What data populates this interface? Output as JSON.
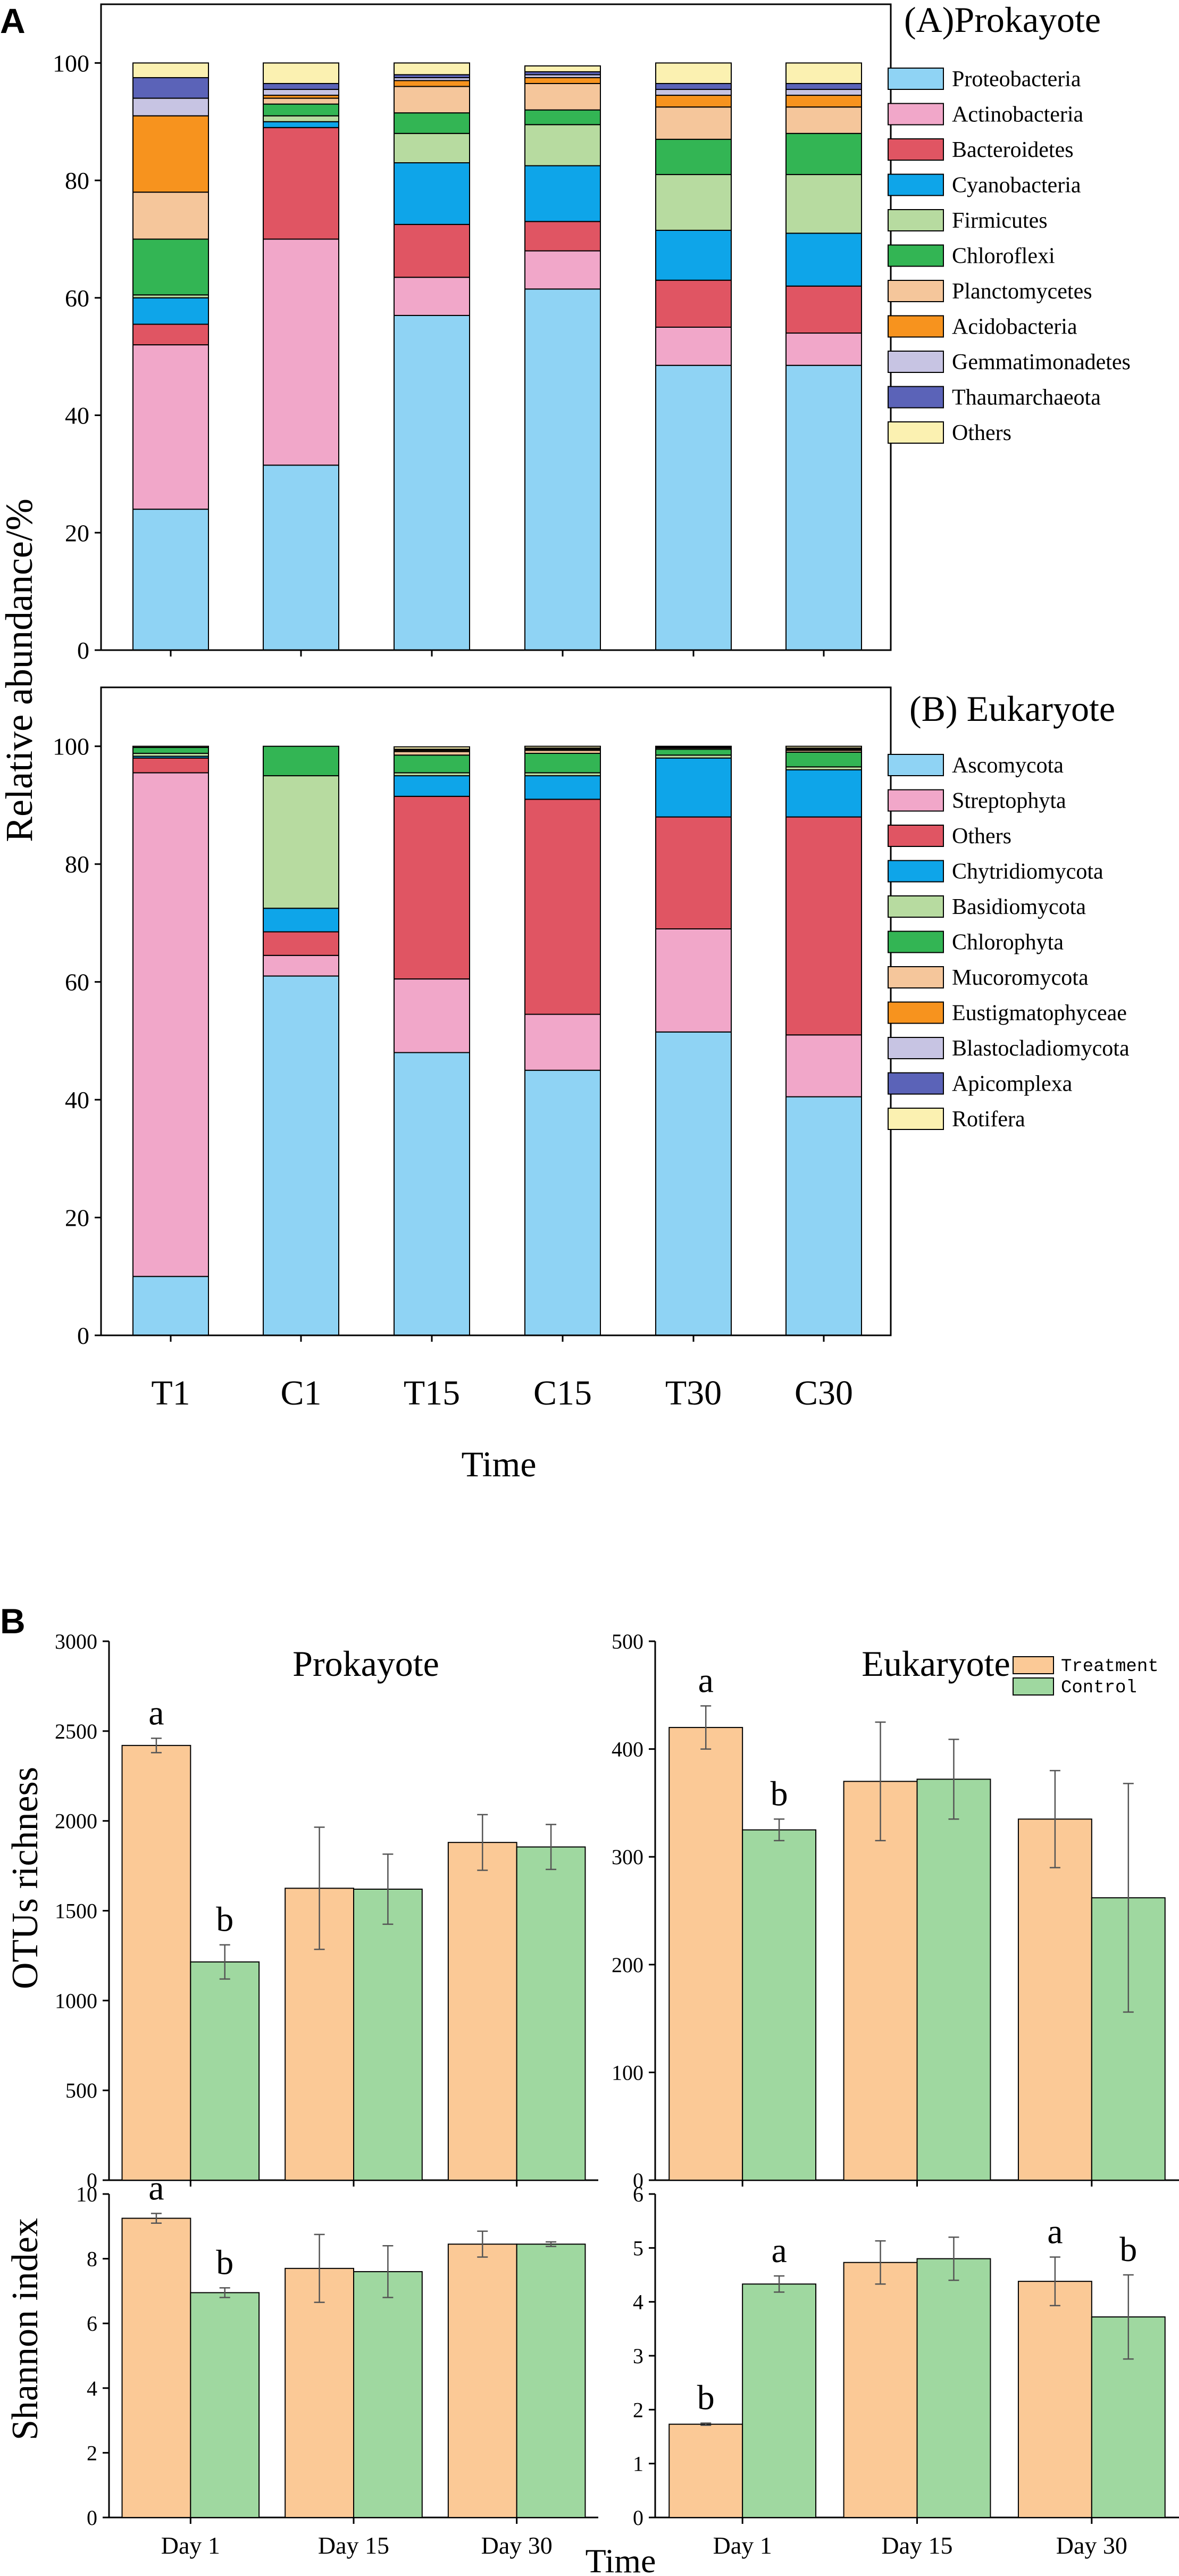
{
  "figure": {
    "panel_a_letter": "A",
    "panel_b_letter": "B",
    "y_label_a": "Relative abundance/%",
    "x_label_a": "Time",
    "x_label_b": "Time",
    "y_label_otus": "OTUs richness",
    "y_label_shannon": "Shannon index"
  },
  "chart_data": [
    {
      "id": "prokaryote",
      "type": "bar",
      "stacked": true,
      "title": "(A)Prokayote",
      "ylim": [
        0,
        110
      ],
      "yticks": [
        0,
        20,
        40,
        60,
        80,
        100
      ],
      "categories": [
        "T1",
        "C1",
        "T15",
        "C15",
        "T30",
        "C30"
      ],
      "series": [
        {
          "name": "Proteobacteria",
          "color": "#8fd3f4",
          "values": [
            24,
            31.5,
            57,
            61.5,
            48.5,
            48.5
          ]
        },
        {
          "name": "Actinobacteria",
          "color": "#f1a7c9",
          "values": [
            28,
            38.5,
            6.5,
            6.5,
            6.5,
            5.5
          ]
        },
        {
          "name": "Bacteroidetes",
          "color": "#e05563",
          "values": [
            3.5,
            19,
            9,
            5,
            8,
            8
          ]
        },
        {
          "name": "Cyanobacteria",
          "color": "#0ea5e9",
          "values": [
            4.5,
            1,
            10.5,
            9.5,
            8.5,
            9
          ]
        },
        {
          "name": "Firmicutes",
          "color": "#b7dba0",
          "values": [
            0.5,
            1,
            5,
            7,
            9.5,
            10
          ]
        },
        {
          "name": "Chloroflexi",
          "color": "#33b554",
          "values": [
            9.5,
            2,
            3.5,
            2.5,
            6,
            7
          ]
        },
        {
          "name": "Planctomycetes",
          "color": "#f5c69b",
          "values": [
            8,
            1,
            4.5,
            4.5,
            5.5,
            4.5
          ]
        },
        {
          "name": "Acidobacteria",
          "color": "#f7931e",
          "values": [
            13,
            0.5,
            1,
            1,
            2,
            2
          ]
        },
        {
          "name": "Gemmatimonadetes",
          "color": "#c7c4e3",
          "values": [
            3,
            1,
            0.5,
            0.5,
            1,
            1
          ]
        },
        {
          "name": "Thaumarchaeota",
          "color": "#5b63b8",
          "values": [
            3.5,
            1,
            0.5,
            0.5,
            1,
            1
          ]
        },
        {
          "name": "Others",
          "color": "#fbf1b1",
          "values": [
            2.5,
            3.5,
            2,
            1,
            3.5,
            3.5
          ]
        }
      ]
    },
    {
      "id": "eukaryote",
      "type": "bar",
      "stacked": true,
      "title": "(B) Eukaryote",
      "ylim": [
        0,
        110
      ],
      "yticks": [
        0,
        20,
        40,
        60,
        80,
        100
      ],
      "categories": [
        "T1",
        "C1",
        "T15",
        "C15",
        "T30",
        "C30"
      ],
      "series": [
        {
          "name": "Ascomycota",
          "color": "#8fd3f4",
          "values": [
            10,
            61,
            48,
            45,
            51.5,
            40.5
          ]
        },
        {
          "name": "Streptophyta",
          "color": "#f1a7c9",
          "values": [
            85.5,
            3.5,
            12.5,
            9.5,
            17.5,
            10.5
          ]
        },
        {
          "name": "Others",
          "color": "#e05563",
          "values": [
            2.5,
            4,
            31,
            36.5,
            19,
            37
          ]
        },
        {
          "name": "Chytridiomycota",
          "color": "#0ea5e9",
          "values": [
            0.3,
            4,
            3.5,
            4,
            10,
            8
          ]
        },
        {
          "name": "Basidiomycota",
          "color": "#b7dba0",
          "values": [
            0.5,
            22.5,
            0.5,
            0.5,
            0.5,
            0.5
          ]
        },
        {
          "name": "Chlorophyta",
          "color": "#33b554",
          "values": [
            1,
            5,
            3,
            3.3,
            1,
            2.5
          ]
        },
        {
          "name": "Mucoromycota",
          "color": "#f5c69b",
          "values": [
            0.2,
            0,
            0.6,
            0.5,
            0.2,
            0.3
          ]
        },
        {
          "name": "Eustigmatophyceae",
          "color": "#f7931e",
          "values": [
            0,
            0,
            0.2,
            0.2,
            0.1,
            0.2
          ]
        },
        {
          "name": "Blastocladiomycota",
          "color": "#c7c4e3",
          "values": [
            0,
            0,
            0.1,
            0.1,
            0.1,
            0.1
          ]
        },
        {
          "name": "Apicomplexa",
          "color": "#5b63b8",
          "values": [
            0,
            0,
            0.1,
            0.1,
            0.1,
            0.1
          ]
        },
        {
          "name": "Rotifera",
          "color": "#fbf1b1",
          "values": [
            0,
            0,
            0.4,
            0.3,
            0,
            0.3
          ]
        }
      ]
    },
    {
      "id": "prok_otus",
      "type": "bar",
      "title": "Prokayote",
      "ylabel": "OTUs richness",
      "ylim": [
        0,
        3000
      ],
      "yticks": [
        0,
        500,
        1000,
        1500,
        2000,
        2500,
        3000
      ],
      "categories": [
        "Day 1",
        "Day 15",
        "Day 30"
      ],
      "series": [
        {
          "name": "Treatment",
          "color": "#fbc996",
          "values": [
            2420,
            1625,
            1880
          ],
          "errors": [
            40,
            340,
            155
          ],
          "labels": [
            "a",
            "",
            ""
          ]
        },
        {
          "name": "Control",
          "color": "#9fd8a0",
          "values": [
            1215,
            1620,
            1855
          ],
          "errors": [
            95,
            195,
            125
          ],
          "labels": [
            "b",
            "",
            ""
          ]
        }
      ]
    },
    {
      "id": "euk_otus",
      "type": "bar",
      "title": "Eukaryote",
      "ylim": [
        0,
        500
      ],
      "yticks": [
        0,
        100,
        200,
        300,
        400,
        500
      ],
      "categories": [
        "Day 1",
        "Day 15",
        "Day 30"
      ],
      "legend": [
        "Treatment",
        "Control"
      ],
      "series": [
        {
          "name": "Treatment",
          "color": "#fbc996",
          "values": [
            420,
            370,
            335
          ],
          "errors": [
            20,
            55,
            45
          ],
          "labels": [
            "a",
            "",
            ""
          ]
        },
        {
          "name": "Control",
          "color": "#9fd8a0",
          "values": [
            325,
            372,
            262
          ],
          "errors": [
            10,
            37,
            106
          ],
          "labels": [
            "b",
            "",
            ""
          ]
        }
      ]
    },
    {
      "id": "prok_shannon",
      "type": "bar",
      "ylabel": "Shannon index",
      "ylim": [
        0,
        10
      ],
      "yticks": [
        0,
        2,
        4,
        6,
        8,
        10
      ],
      "categories": [
        "Day 1",
        "Day 15",
        "Day 30"
      ],
      "series": [
        {
          "name": "Treatment",
          "color": "#fbc996",
          "values": [
            9.25,
            7.7,
            8.45
          ],
          "errors": [
            0.15,
            1.05,
            0.4
          ],
          "labels": [
            "a",
            "",
            ""
          ]
        },
        {
          "name": "Control",
          "color": "#9fd8a0",
          "values": [
            6.95,
            7.6,
            8.45
          ],
          "errors": [
            0.15,
            0.8,
            0.07
          ],
          "labels": [
            "b",
            "",
            ""
          ]
        }
      ]
    },
    {
      "id": "euk_shannon",
      "type": "bar",
      "ylim": [
        0,
        6
      ],
      "yticks": [
        0,
        1,
        2,
        3,
        4,
        5,
        6
      ],
      "categories": [
        "Day 1",
        "Day 15",
        "Day 30"
      ],
      "series": [
        {
          "name": "Treatment",
          "color": "#fbc996",
          "values": [
            1.73,
            4.73,
            4.38
          ],
          "errors": [
            0.02,
            0.4,
            0.45
          ],
          "labels": [
            "b",
            "",
            "a"
          ]
        },
        {
          "name": "Control",
          "color": "#9fd8a0",
          "values": [
            4.33,
            4.8,
            3.72
          ],
          "errors": [
            0.15,
            0.4,
            0.78
          ],
          "labels": [
            "a",
            "",
            "b"
          ]
        }
      ]
    }
  ]
}
